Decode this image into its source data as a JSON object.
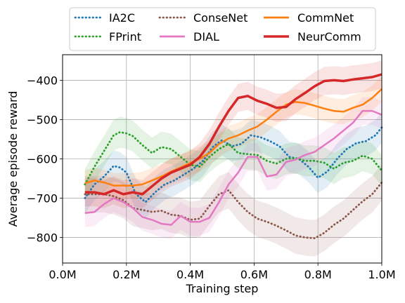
{
  "chart_data": {
    "type": "line",
    "title": "",
    "xlabel": "Training step",
    "ylabel": "Average episode reward",
    "xlim": [
      0,
      1.0
    ],
    "ylim": [
      -865,
      -335
    ],
    "xticks": [
      0.0,
      0.2,
      0.4,
      0.6,
      0.8,
      1.0
    ],
    "xtick_labels": [
      "0.0M",
      "0.2M",
      "0.4M",
      "0.6M",
      "0.8M",
      "1.0M"
    ],
    "yticks": [
      -400,
      -500,
      -600,
      -700,
      -800
    ],
    "ytick_labels": [
      "−400",
      "−500",
      "−600",
      "−700",
      "−800"
    ],
    "grid": true,
    "legend_position": "top-center-outside",
    "legend_columns": 3,
    "series": [
      {
        "name": "IA2C",
        "color": "#1f77b4",
        "style": "dotted",
        "band": true,
        "x": [
          0.07,
          0.1,
          0.13,
          0.16,
          0.18,
          0.2,
          0.23,
          0.26,
          0.29,
          0.32,
          0.35,
          0.38,
          0.41,
          0.44,
          0.47,
          0.5,
          0.53,
          0.56,
          0.59,
          0.62,
          0.65,
          0.68,
          0.71,
          0.74,
          0.77,
          0.8,
          0.83,
          0.86,
          0.89,
          0.92,
          0.95,
          0.98,
          1.0
        ],
        "y": [
          -700,
          -665,
          -645,
          -618,
          -622,
          -635,
          -690,
          -710,
          -685,
          -665,
          -655,
          -640,
          -625,
          -605,
          -570,
          -552,
          -568,
          -562,
          -540,
          -545,
          -555,
          -568,
          -595,
          -600,
          -620,
          -648,
          -632,
          -600,
          -575,
          -560,
          -555,
          -540,
          -520
        ]
      },
      {
        "name": "FPrint",
        "color": "#2ca02c",
        "style": "dotted",
        "band": true,
        "x": [
          0.07,
          0.1,
          0.13,
          0.16,
          0.18,
          0.2,
          0.22,
          0.25,
          0.28,
          0.31,
          0.34,
          0.37,
          0.4,
          0.43,
          0.46,
          0.49,
          0.52,
          0.55,
          0.58,
          0.61,
          0.64,
          0.67,
          0.7,
          0.73,
          0.76,
          0.79,
          0.82,
          0.85,
          0.88,
          0.91,
          0.94,
          0.97,
          1.0
        ],
        "y": [
          -665,
          -620,
          -580,
          -540,
          -532,
          -535,
          -542,
          -565,
          -585,
          -570,
          -575,
          -595,
          -615,
          -620,
          -595,
          -575,
          -562,
          -585,
          -588,
          -590,
          -605,
          -612,
          -600,
          -598,
          -605,
          -605,
          -610,
          -625,
          -610,
          -605,
          -592,
          -600,
          -630
        ]
      },
      {
        "name": "ConseNet",
        "color": "#8c564b",
        "style": "dotted",
        "band": true,
        "x": [
          0.07,
          0.1,
          0.13,
          0.16,
          0.19,
          0.22,
          0.25,
          0.28,
          0.31,
          0.34,
          0.37,
          0.4,
          0.43,
          0.46,
          0.49,
          0.52,
          0.55,
          0.58,
          0.61,
          0.64,
          0.67,
          0.7,
          0.73,
          0.76,
          0.79,
          0.82,
          0.85,
          0.88,
          0.91,
          0.94,
          0.97,
          1.0
        ],
        "y": [
          -690,
          -690,
          -690,
          -695,
          -705,
          -725,
          -730,
          -735,
          -732,
          -742,
          -745,
          -755,
          -752,
          -720,
          -690,
          -680,
          -710,
          -735,
          -752,
          -760,
          -770,
          -782,
          -795,
          -800,
          -802,
          -788,
          -768,
          -752,
          -730,
          -708,
          -690,
          -660
        ]
      },
      {
        "name": "DIAL",
        "color": "#e377c2",
        "style": "solid",
        "band": true,
        "x": [
          0.07,
          0.1,
          0.13,
          0.16,
          0.19,
          0.22,
          0.25,
          0.28,
          0.31,
          0.34,
          0.37,
          0.4,
          0.43,
          0.46,
          0.49,
          0.52,
          0.55,
          0.58,
          0.61,
          0.64,
          0.67,
          0.7,
          0.73,
          0.76,
          0.79,
          0.82,
          0.85,
          0.88,
          0.91,
          0.94,
          0.97,
          1.0
        ],
        "y": [
          -738,
          -735,
          -715,
          -700,
          -710,
          -725,
          -748,
          -755,
          -765,
          -768,
          -745,
          -760,
          -760,
          -750,
          -710,
          -665,
          -635,
          -595,
          -595,
          -645,
          -640,
          -608,
          -602,
          -590,
          -582,
          -565,
          -548,
          -528,
          -508,
          -478,
          -478,
          -488
        ]
      },
      {
        "name": "CommNet",
        "color": "#ff7f0e",
        "style": "solid",
        "band": true,
        "x": [
          0.07,
          0.1,
          0.13,
          0.16,
          0.19,
          0.22,
          0.25,
          0.28,
          0.31,
          0.34,
          0.37,
          0.4,
          0.43,
          0.46,
          0.49,
          0.52,
          0.55,
          0.58,
          0.61,
          0.64,
          0.67,
          0.7,
          0.73,
          0.76,
          0.79,
          0.82,
          0.85,
          0.88,
          0.91,
          0.94,
          0.97,
          1.0
        ],
        "y": [
          -662,
          -655,
          -660,
          -668,
          -668,
          -668,
          -665,
          -655,
          -645,
          -632,
          -622,
          -610,
          -600,
          -585,
          -562,
          -548,
          -540,
          -528,
          -518,
          -500,
          -480,
          -462,
          -455,
          -458,
          -465,
          -472,
          -478,
          -480,
          -470,
          -462,
          -445,
          -422
        ]
      },
      {
        "name": "NeurComm",
        "color": "#d62728",
        "style": "solid",
        "band": true,
        "x": [
          0.07,
          0.1,
          0.13,
          0.16,
          0.19,
          0.22,
          0.25,
          0.28,
          0.31,
          0.34,
          0.37,
          0.4,
          0.43,
          0.46,
          0.49,
          0.52,
          0.55,
          0.58,
          0.61,
          0.64,
          0.67,
          0.7,
          0.73,
          0.76,
          0.79,
          0.82,
          0.85,
          0.88,
          0.91,
          0.94,
          0.97,
          1.0
        ],
        "y": [
          -685,
          -685,
          -690,
          -680,
          -690,
          -685,
          -690,
          -670,
          -650,
          -635,
          -625,
          -615,
          -595,
          -562,
          -518,
          -478,
          -445,
          -440,
          -452,
          -460,
          -470,
          -468,
          -448,
          -432,
          -415,
          -402,
          -400,
          -402,
          -398,
          -395,
          -392,
          -385
        ]
      }
    ]
  }
}
